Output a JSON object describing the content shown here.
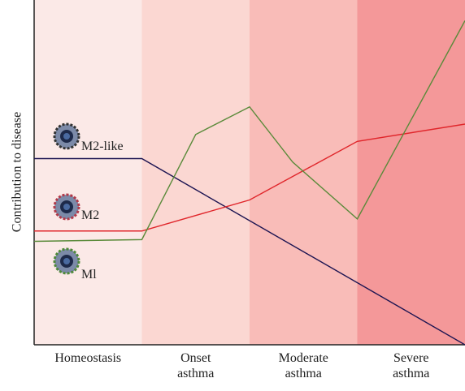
{
  "chart_data": {
    "type": "line",
    "y_label": "Contribution to disease",
    "categories": [
      "Homeostasis",
      "Onset asthma",
      "Moderate asthma",
      "Severe asthma"
    ],
    "band_colors": [
      "#fbe9e7",
      "#fbd7d2",
      "#f9bcb8",
      "#f49899"
    ],
    "xlim": [
      0,
      4
    ],
    "ylim": [
      0,
      100
    ],
    "series": [
      {
        "name": "M2-like",
        "color": "#1c1452",
        "x": [
          0,
          1,
          4
        ],
        "values": [
          54,
          54,
          0
        ]
      },
      {
        "name": "M2",
        "color": "#e0262b",
        "x": [
          0,
          1,
          2,
          3,
          4
        ],
        "values": [
          33,
          33,
          42,
          59,
          64
        ]
      },
      {
        "name": "Ml",
        "color": "#5a8a3a",
        "x": [
          0,
          1,
          1.5,
          2,
          2.4,
          3,
          4
        ],
        "values": [
          30,
          30.5,
          61,
          69,
          53,
          36.5,
          94
        ]
      }
    ]
  }
}
